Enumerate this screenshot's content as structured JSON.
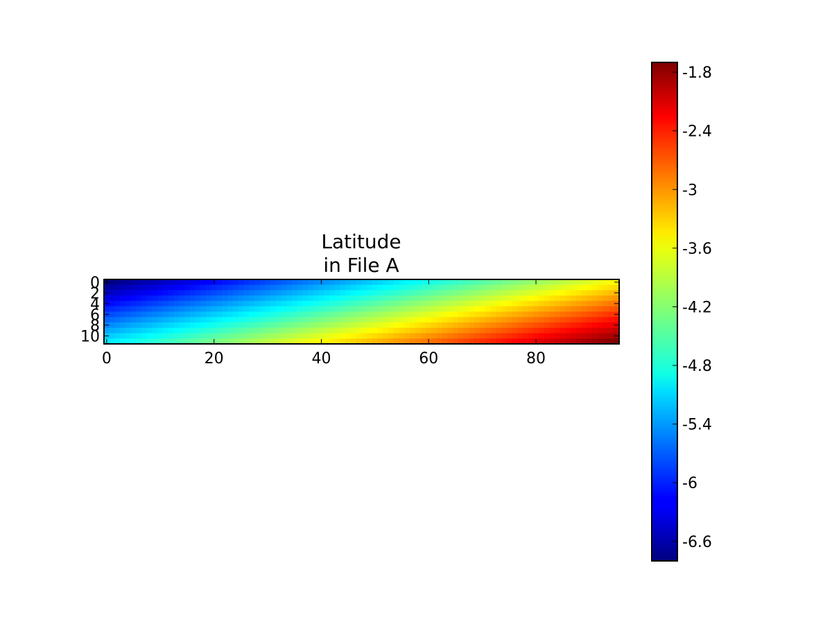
{
  "chart_data": {
    "type": "heatmap",
    "title": [
      "Latitude",
      "in File A"
    ],
    "xlabel": "",
    "ylabel": "",
    "x_ticks": [
      0,
      20,
      40,
      60,
      80
    ],
    "y_ticks": [
      0,
      2,
      4,
      6,
      8,
      10
    ],
    "x_range": [
      -0.5,
      95.5
    ],
    "y_range": [
      -0.5,
      11.5
    ],
    "y_inverted": true,
    "grid": false,
    "shape": [
      12,
      96
    ],
    "z_range": [
      -6.8,
      -1.7
    ],
    "corner_values": {
      "top_left": -6.8,
      "top_right": -3.6,
      "bottom_left": -5.0,
      "bottom_right": -1.7
    },
    "colormap": "jet",
    "colorbar": {
      "ticks": [
        -6.6,
        -6,
        -5.4,
        -4.8,
        -4.2,
        -3.6,
        -3,
        -2.4,
        -1.8
      ],
      "tick_labels": [
        "-6.6",
        "-6",
        "-5.4",
        "-4.8",
        "-4.2",
        "-3.6",
        "-3",
        "-2.4",
        "-1.8"
      ],
      "range": [
        -6.8,
        -1.7
      ]
    }
  }
}
